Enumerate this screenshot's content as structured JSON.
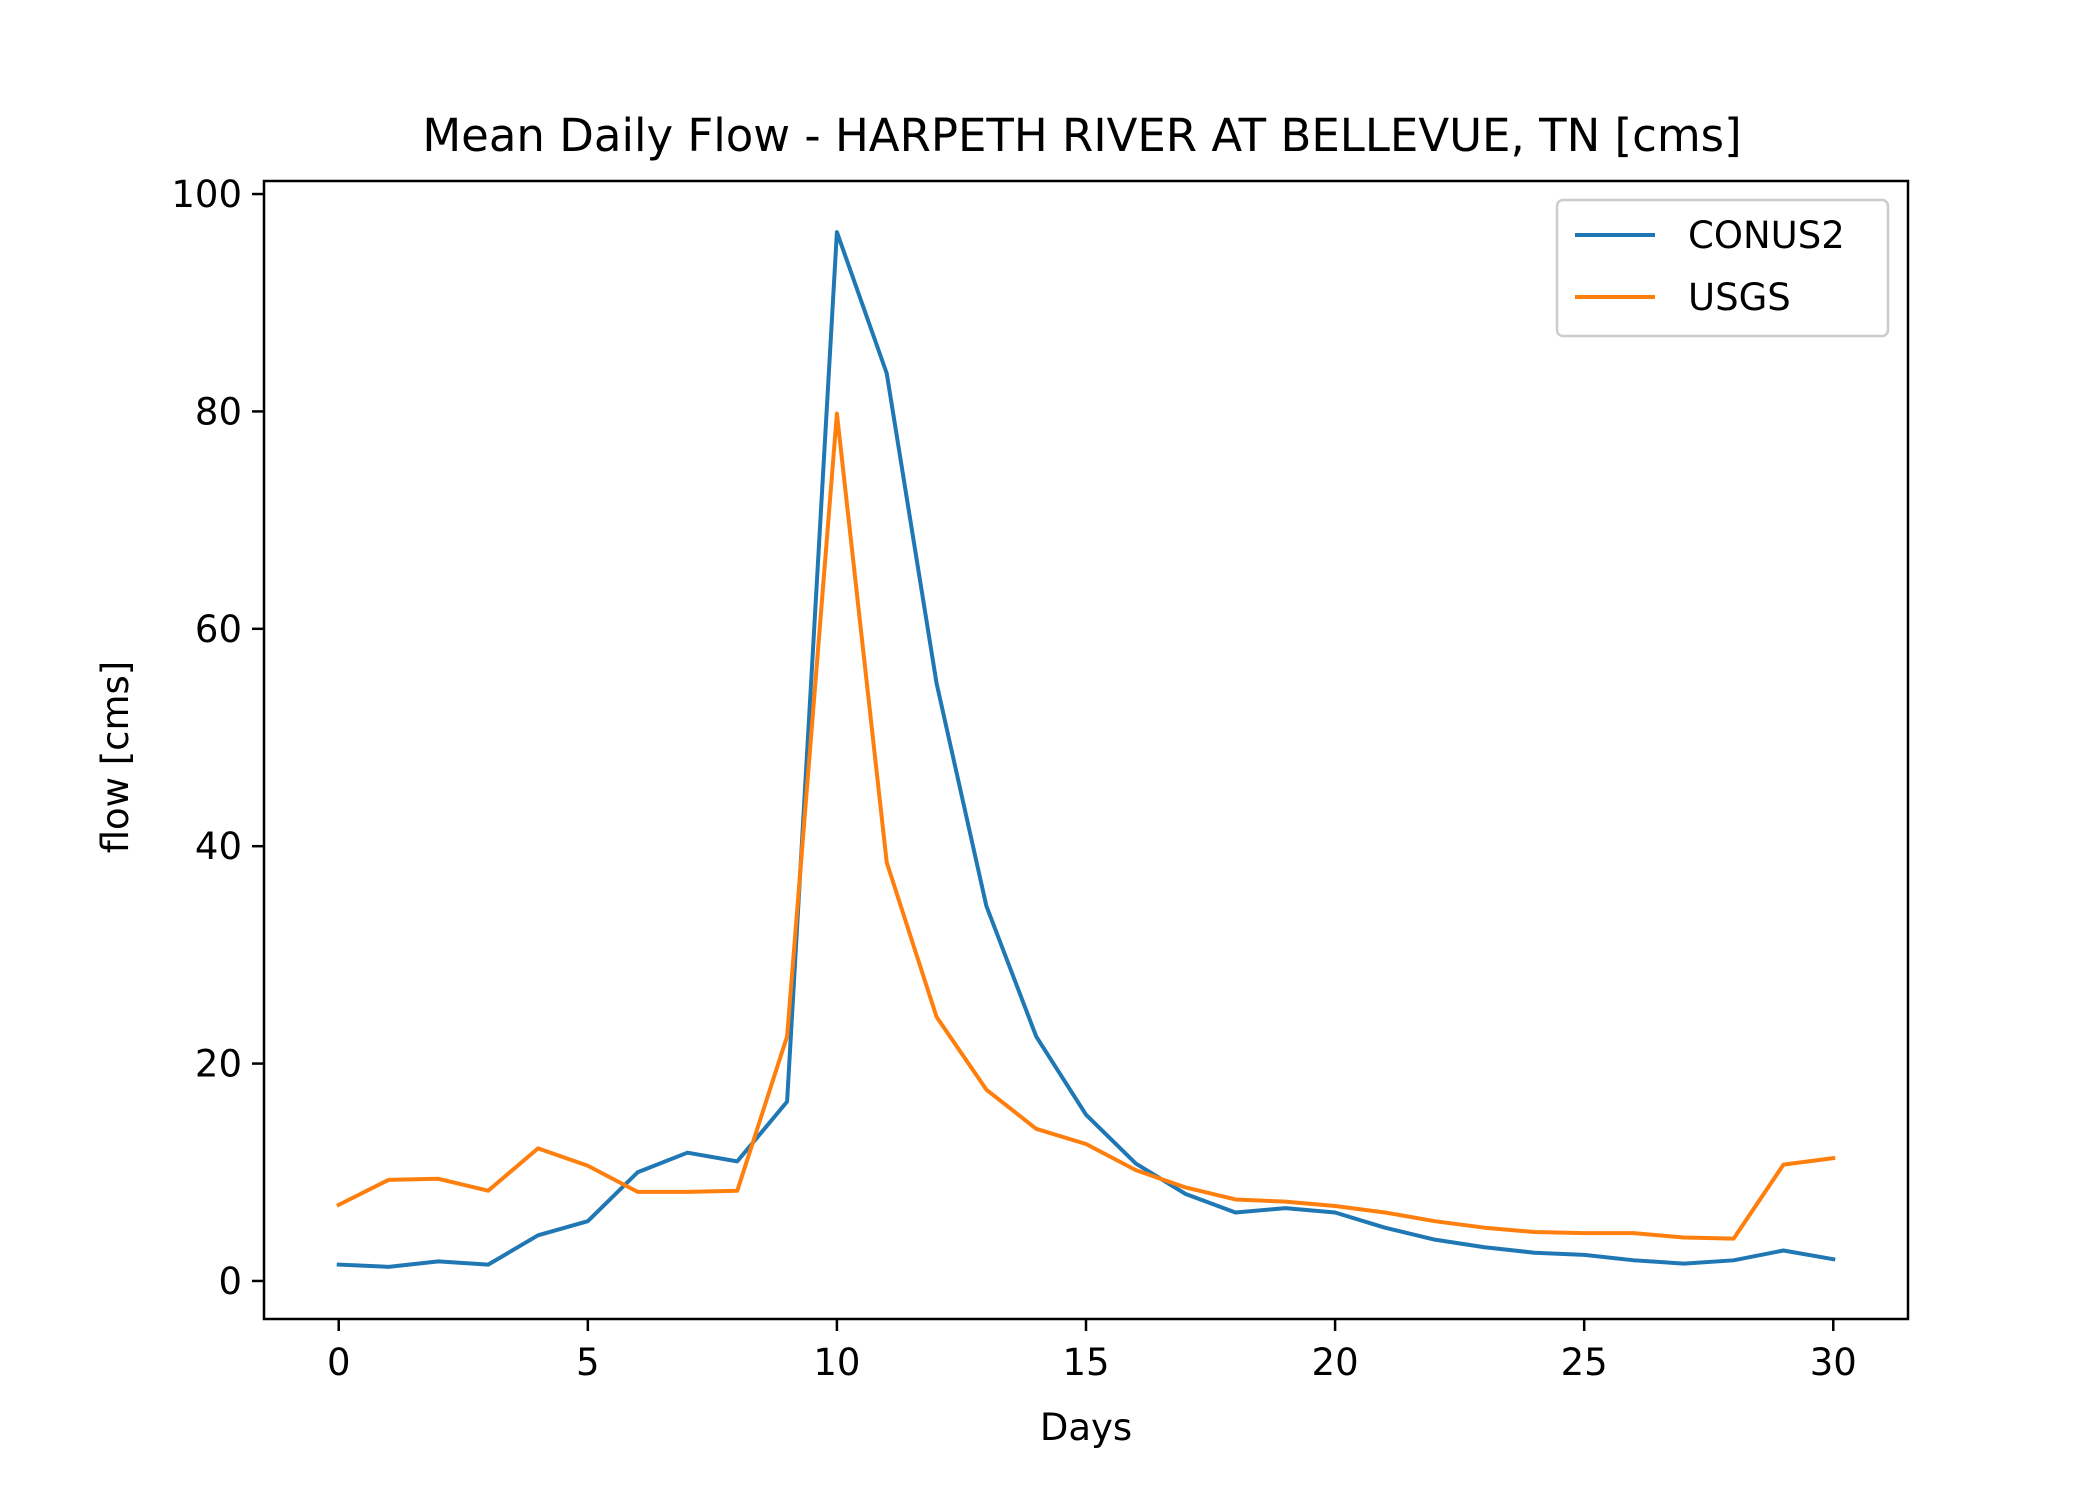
{
  "chart_data": {
    "type": "line",
    "title": "Mean Daily Flow - HARPETH RIVER AT BELLEVUE, TN [cms]",
    "xlabel": "Days",
    "ylabel": "flow [cms]",
    "xlim": [
      -1.5,
      31.5
    ],
    "ylim": [
      -3.5,
      101.2
    ],
    "xticks": [
      0,
      5,
      10,
      15,
      20,
      25,
      30
    ],
    "yticks": [
      0,
      20,
      40,
      60,
      80,
      100
    ],
    "grid": false,
    "legend_position": "upper right",
    "x": [
      0,
      1,
      2,
      3,
      4,
      5,
      6,
      7,
      8,
      9,
      10,
      11,
      12,
      13,
      14,
      15,
      16,
      17,
      18,
      19,
      20,
      21,
      22,
      23,
      24,
      25,
      26,
      27,
      28,
      29,
      30
    ],
    "series": [
      {
        "name": "CONUS2",
        "color": "#1f77b4",
        "values": [
          1.5,
          1.3,
          1.8,
          1.5,
          4.2,
          5.5,
          10.0,
          11.8,
          11.0,
          16.5,
          96.5,
          83.5,
          55.0,
          34.5,
          22.5,
          15.3,
          10.8,
          8.0,
          6.3,
          6.7,
          6.3,
          4.9,
          3.8,
          3.1,
          2.6,
          2.4,
          1.9,
          1.6,
          1.9,
          2.8,
          2.0
        ]
      },
      {
        "name": "USGS",
        "color": "#ff7f0e",
        "values": [
          7.0,
          9.3,
          9.4,
          8.3,
          12.2,
          10.6,
          8.2,
          8.2,
          8.3,
          22.5,
          79.8,
          38.5,
          24.3,
          17.6,
          14.0,
          12.6,
          10.2,
          8.6,
          7.5,
          7.3,
          6.9,
          6.3,
          5.5,
          4.9,
          4.5,
          4.4,
          4.4,
          4.0,
          3.9,
          10.7,
          11.3
        ]
      }
    ]
  }
}
